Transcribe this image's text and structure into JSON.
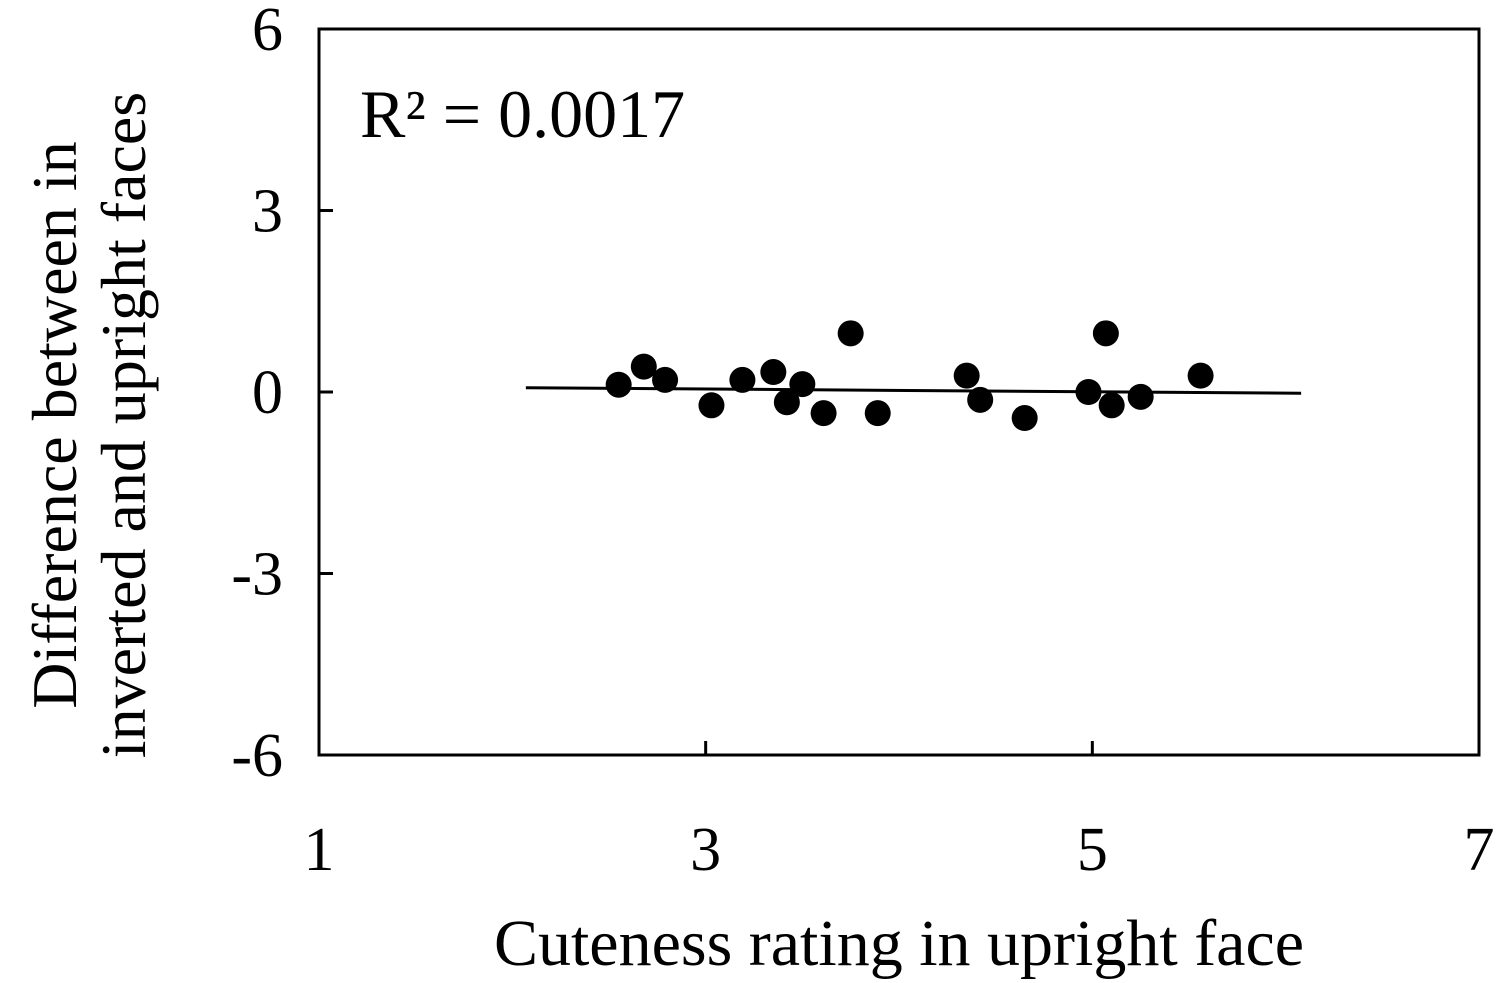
{
  "chart_data": {
    "type": "scatter",
    "xlabel": "Cuteness rating in upright face",
    "ylabel_line1": "Difference between in",
    "ylabel_line2": "inverted and upright faces",
    "annotation": "R² = 0.0017",
    "xlim": [
      1,
      7
    ],
    "ylim": [
      -6,
      6
    ],
    "x_ticks": [
      1,
      3,
      5,
      7
    ],
    "x_tick_labels": [
      "1",
      "3",
      "5",
      "7"
    ],
    "y_ticks": [
      6,
      3,
      0,
      -3,
      -6
    ],
    "y_tick_labels": [
      "6",
      "3",
      "0",
      "-3",
      "-6"
    ],
    "grid": false,
    "points": [
      {
        "x": 2.55,
        "y": 0.12
      },
      {
        "x": 2.68,
        "y": 0.42
      },
      {
        "x": 2.79,
        "y": 0.2
      },
      {
        "x": 3.03,
        "y": -0.22
      },
      {
        "x": 3.19,
        "y": 0.2
      },
      {
        "x": 3.35,
        "y": 0.33
      },
      {
        "x": 3.42,
        "y": -0.17
      },
      {
        "x": 3.5,
        "y": 0.13
      },
      {
        "x": 3.61,
        "y": -0.35
      },
      {
        "x": 3.75,
        "y": 0.97
      },
      {
        "x": 3.89,
        "y": -0.35
      },
      {
        "x": 4.35,
        "y": 0.27
      },
      {
        "x": 4.42,
        "y": -0.13
      },
      {
        "x": 4.65,
        "y": -0.43
      },
      {
        "x": 4.98,
        "y": 0.0
      },
      {
        "x": 5.07,
        "y": 0.97
      },
      {
        "x": 5.1,
        "y": -0.22
      },
      {
        "x": 5.25,
        "y": -0.08
      },
      {
        "x": 5.56,
        "y": 0.27
      }
    ],
    "trendline": {
      "x": [
        2.07,
        6.08
      ],
      "y": [
        0.07,
        -0.02
      ]
    },
    "colors": {
      "points": "#000000",
      "line": "#000000",
      "axes": "#000000"
    }
  }
}
